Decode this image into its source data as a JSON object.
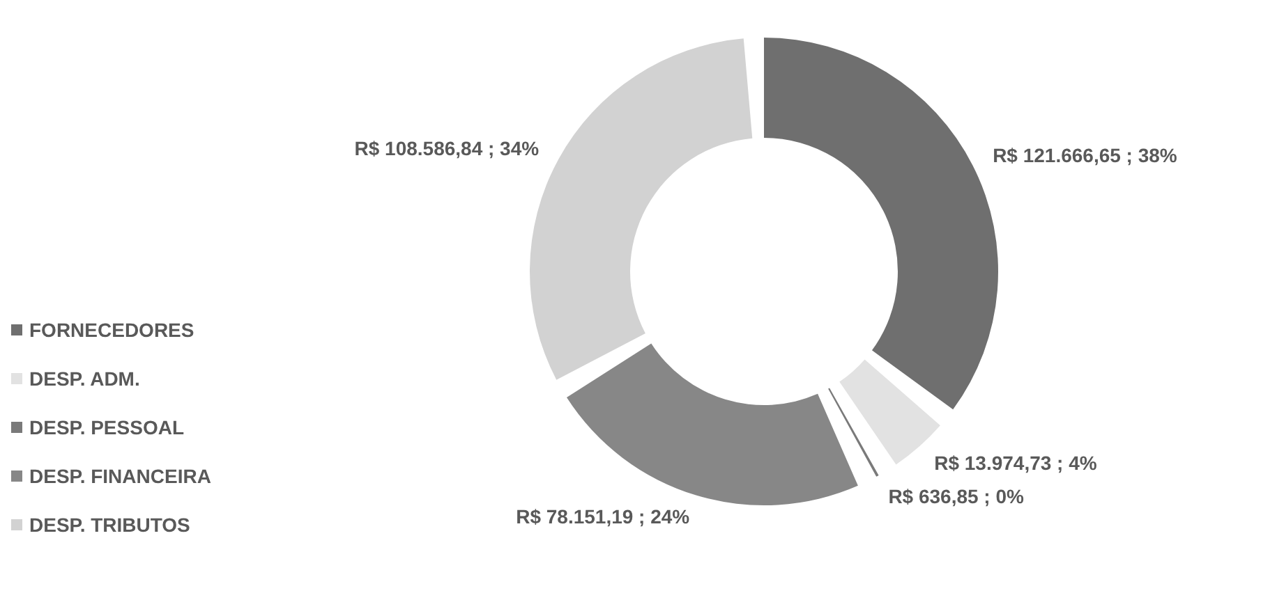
{
  "chart_data": {
    "type": "donut",
    "categories": [
      "FORNECEDORES",
      "DESP. ADM.",
      "DESP. PESSOAL",
      "DESP. FINANCEIRA",
      "DESP. TRIBUTOS"
    ],
    "values": [
      121666.65,
      13974.73,
      636.85,
      78151.19,
      108586.84
    ],
    "colors": [
      "#6f6f6f",
      "#e2e2e2",
      "#7a7a7a",
      "#878787",
      "#d2d2d2"
    ],
    "value_labels": [
      "R$ 121.666,65 ; 38%",
      "R$ 13.974,73 ; 4%",
      "R$ 636,85 ; 0%",
      "R$ 78.151,19 ; 24%",
      "R$ 108.586,84 ; 34%"
    ],
    "legend": "bottom left"
  }
}
